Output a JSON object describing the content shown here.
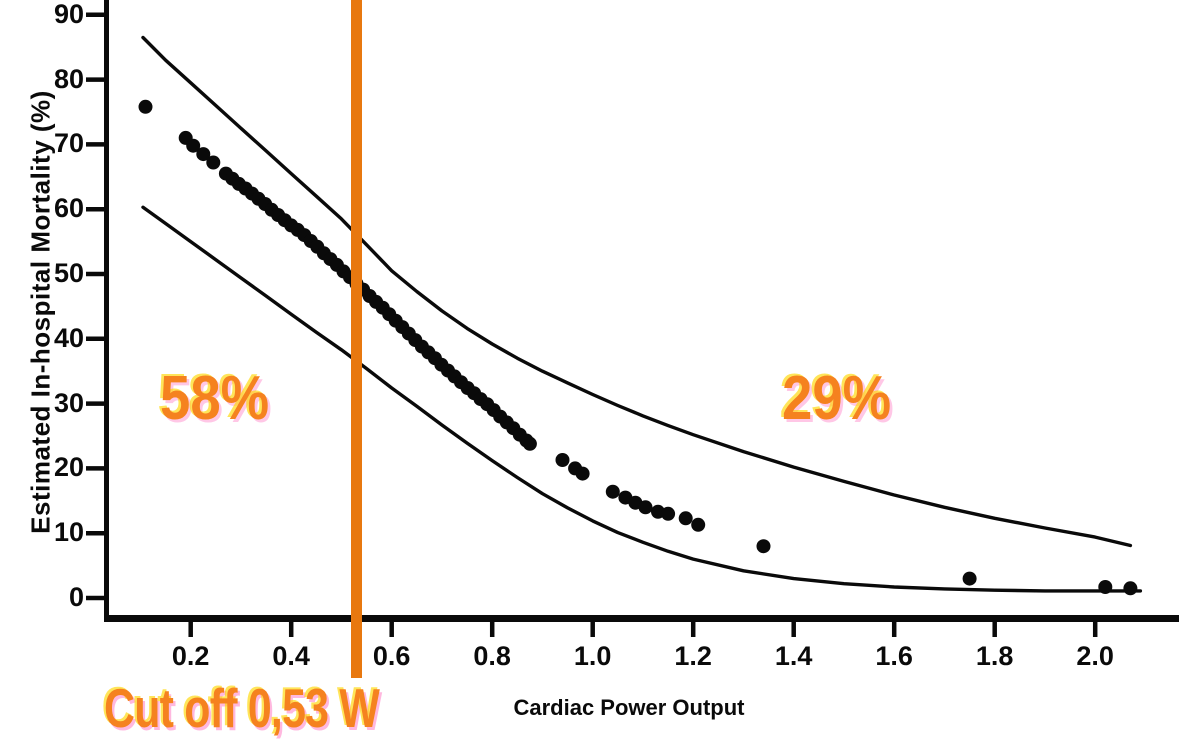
{
  "chart_data": {
    "type": "scatter",
    "title": "",
    "xlabel": "Cardiac Power Output",
    "ylabel": "Estimated In-hospital Mortality (%)",
    "xlim": [
      0.03,
      2.17
    ],
    "ylim": [
      0,
      92
    ],
    "grid": false,
    "x_ticks": [
      "0.2",
      "0.4",
      "0.6",
      "0.8",
      "1.0",
      "1.2",
      "1.4",
      "1.6",
      "1.8",
      "2.0"
    ],
    "y_ticks": [
      "0",
      "10",
      "20",
      "30",
      "40",
      "50",
      "60",
      "70",
      "80",
      "90"
    ],
    "cutoff": {
      "x": 0.53,
      "label": "Cut off 0,53 W"
    },
    "annotations": [
      {
        "text": "58%",
        "x": 0.25,
        "y": 31,
        "meaning": "mortality left of cutoff"
      },
      {
        "text": "29%",
        "x": 1.49,
        "y": 30,
        "meaning": "mortality right of cutoff"
      }
    ],
    "colors": {
      "ink": "#0a0a0a",
      "annotation_orange": "#F5821F",
      "cutoff_line_orange": "#E8780F",
      "background": "#FFFFFF"
    },
    "series": [
      {
        "name": "estimated-mortality-points",
        "type": "scatter",
        "points": [
          [
            0.11,
            75.8
          ],
          [
            0.19,
            71.0
          ],
          [
            0.205,
            69.8
          ],
          [
            0.225,
            68.5
          ],
          [
            0.245,
            67.2
          ],
          [
            0.27,
            65.5
          ],
          [
            0.283,
            64.7
          ],
          [
            0.296,
            63.9
          ],
          [
            0.309,
            63.2
          ],
          [
            0.322,
            62.4
          ],
          [
            0.335,
            61.6
          ],
          [
            0.348,
            60.8
          ],
          [
            0.361,
            59.9
          ],
          [
            0.374,
            59.1
          ],
          [
            0.387,
            58.3
          ],
          [
            0.4,
            57.5
          ],
          [
            0.413,
            56.8
          ],
          [
            0.426,
            56.0
          ],
          [
            0.439,
            55.1
          ],
          [
            0.452,
            54.2
          ],
          [
            0.465,
            53.2
          ],
          [
            0.478,
            52.3
          ],
          [
            0.491,
            51.4
          ],
          [
            0.504,
            50.4
          ],
          [
            0.517,
            49.5
          ],
          [
            0.53,
            48.5
          ],
          [
            0.543,
            47.6
          ],
          [
            0.556,
            46.6
          ],
          [
            0.569,
            45.7
          ],
          [
            0.582,
            44.8
          ],
          [
            0.595,
            43.8
          ],
          [
            0.608,
            42.8
          ],
          [
            0.621,
            41.8
          ],
          [
            0.634,
            40.8
          ],
          [
            0.647,
            39.8
          ],
          [
            0.66,
            38.8
          ],
          [
            0.673,
            37.9
          ],
          [
            0.686,
            37.0
          ],
          [
            0.699,
            36.0
          ],
          [
            0.712,
            35.1
          ],
          [
            0.725,
            34.2
          ],
          [
            0.738,
            33.3
          ],
          [
            0.751,
            32.4
          ],
          [
            0.764,
            31.6
          ],
          [
            0.777,
            30.7
          ],
          [
            0.79,
            29.9
          ],
          [
            0.803,
            29.0
          ],
          [
            0.816,
            28.0
          ],
          [
            0.829,
            27.1
          ],
          [
            0.842,
            26.2
          ],
          [
            0.855,
            25.2
          ],
          [
            0.868,
            24.3
          ],
          [
            0.875,
            23.8
          ],
          [
            0.94,
            21.3
          ],
          [
            0.965,
            20.0
          ],
          [
            0.98,
            19.2
          ],
          [
            1.04,
            16.4
          ],
          [
            1.065,
            15.5
          ],
          [
            1.085,
            14.7
          ],
          [
            1.105,
            14.0
          ],
          [
            1.13,
            13.3
          ],
          [
            1.15,
            13.0
          ],
          [
            1.185,
            12.3
          ],
          [
            1.21,
            11.3
          ],
          [
            1.34,
            8.0
          ],
          [
            1.75,
            3.0
          ],
          [
            2.02,
            1.7
          ],
          [
            2.07,
            1.5
          ]
        ]
      },
      {
        "name": "upper-confidence-curve",
        "type": "line",
        "points": [
          [
            0.105,
            86.5
          ],
          [
            0.15,
            83
          ],
          [
            0.2,
            79.5
          ],
          [
            0.25,
            76
          ],
          [
            0.3,
            72.5
          ],
          [
            0.35,
            69
          ],
          [
            0.4,
            65.5
          ],
          [
            0.45,
            62
          ],
          [
            0.5,
            58.5
          ],
          [
            0.55,
            54.5
          ],
          [
            0.6,
            50.5
          ],
          [
            0.65,
            47.3
          ],
          [
            0.7,
            44.3
          ],
          [
            0.75,
            41.6
          ],
          [
            0.8,
            39.2
          ],
          [
            0.85,
            37.0
          ],
          [
            0.9,
            35.0
          ],
          [
            0.95,
            33.2
          ],
          [
            1.0,
            31.4
          ],
          [
            1.05,
            29.7
          ],
          [
            1.1,
            28.1
          ],
          [
            1.15,
            26.6
          ],
          [
            1.2,
            25.2
          ],
          [
            1.3,
            22.6
          ],
          [
            1.4,
            20.2
          ],
          [
            1.5,
            18.0
          ],
          [
            1.6,
            15.9
          ],
          [
            1.7,
            14.0
          ],
          [
            1.8,
            12.3
          ],
          [
            1.9,
            10.8
          ],
          [
            2.0,
            9.4
          ],
          [
            2.07,
            8.1
          ]
        ]
      },
      {
        "name": "lower-confidence-curve",
        "type": "line",
        "points": [
          [
            0.105,
            60.3
          ],
          [
            0.15,
            57.8
          ],
          [
            0.2,
            55.0
          ],
          [
            0.25,
            52.2
          ],
          [
            0.3,
            49.4
          ],
          [
            0.35,
            46.6
          ],
          [
            0.4,
            43.8
          ],
          [
            0.45,
            41.0
          ],
          [
            0.5,
            38.3
          ],
          [
            0.55,
            35.4
          ],
          [
            0.6,
            32.4
          ],
          [
            0.65,
            29.6
          ],
          [
            0.7,
            26.7
          ],
          [
            0.75,
            23.9
          ],
          [
            0.8,
            21.2
          ],
          [
            0.85,
            18.6
          ],
          [
            0.9,
            16.1
          ],
          [
            0.95,
            13.9
          ],
          [
            1.0,
            11.9
          ],
          [
            1.05,
            10.1
          ],
          [
            1.1,
            8.6
          ],
          [
            1.15,
            7.2
          ],
          [
            1.2,
            6.0
          ],
          [
            1.3,
            4.2
          ],
          [
            1.4,
            3.0
          ],
          [
            1.5,
            2.2
          ],
          [
            1.6,
            1.7
          ],
          [
            1.7,
            1.4
          ],
          [
            1.8,
            1.2
          ],
          [
            1.9,
            1.1
          ],
          [
            2.0,
            1.1
          ],
          [
            2.09,
            1.1
          ]
        ]
      }
    ]
  }
}
